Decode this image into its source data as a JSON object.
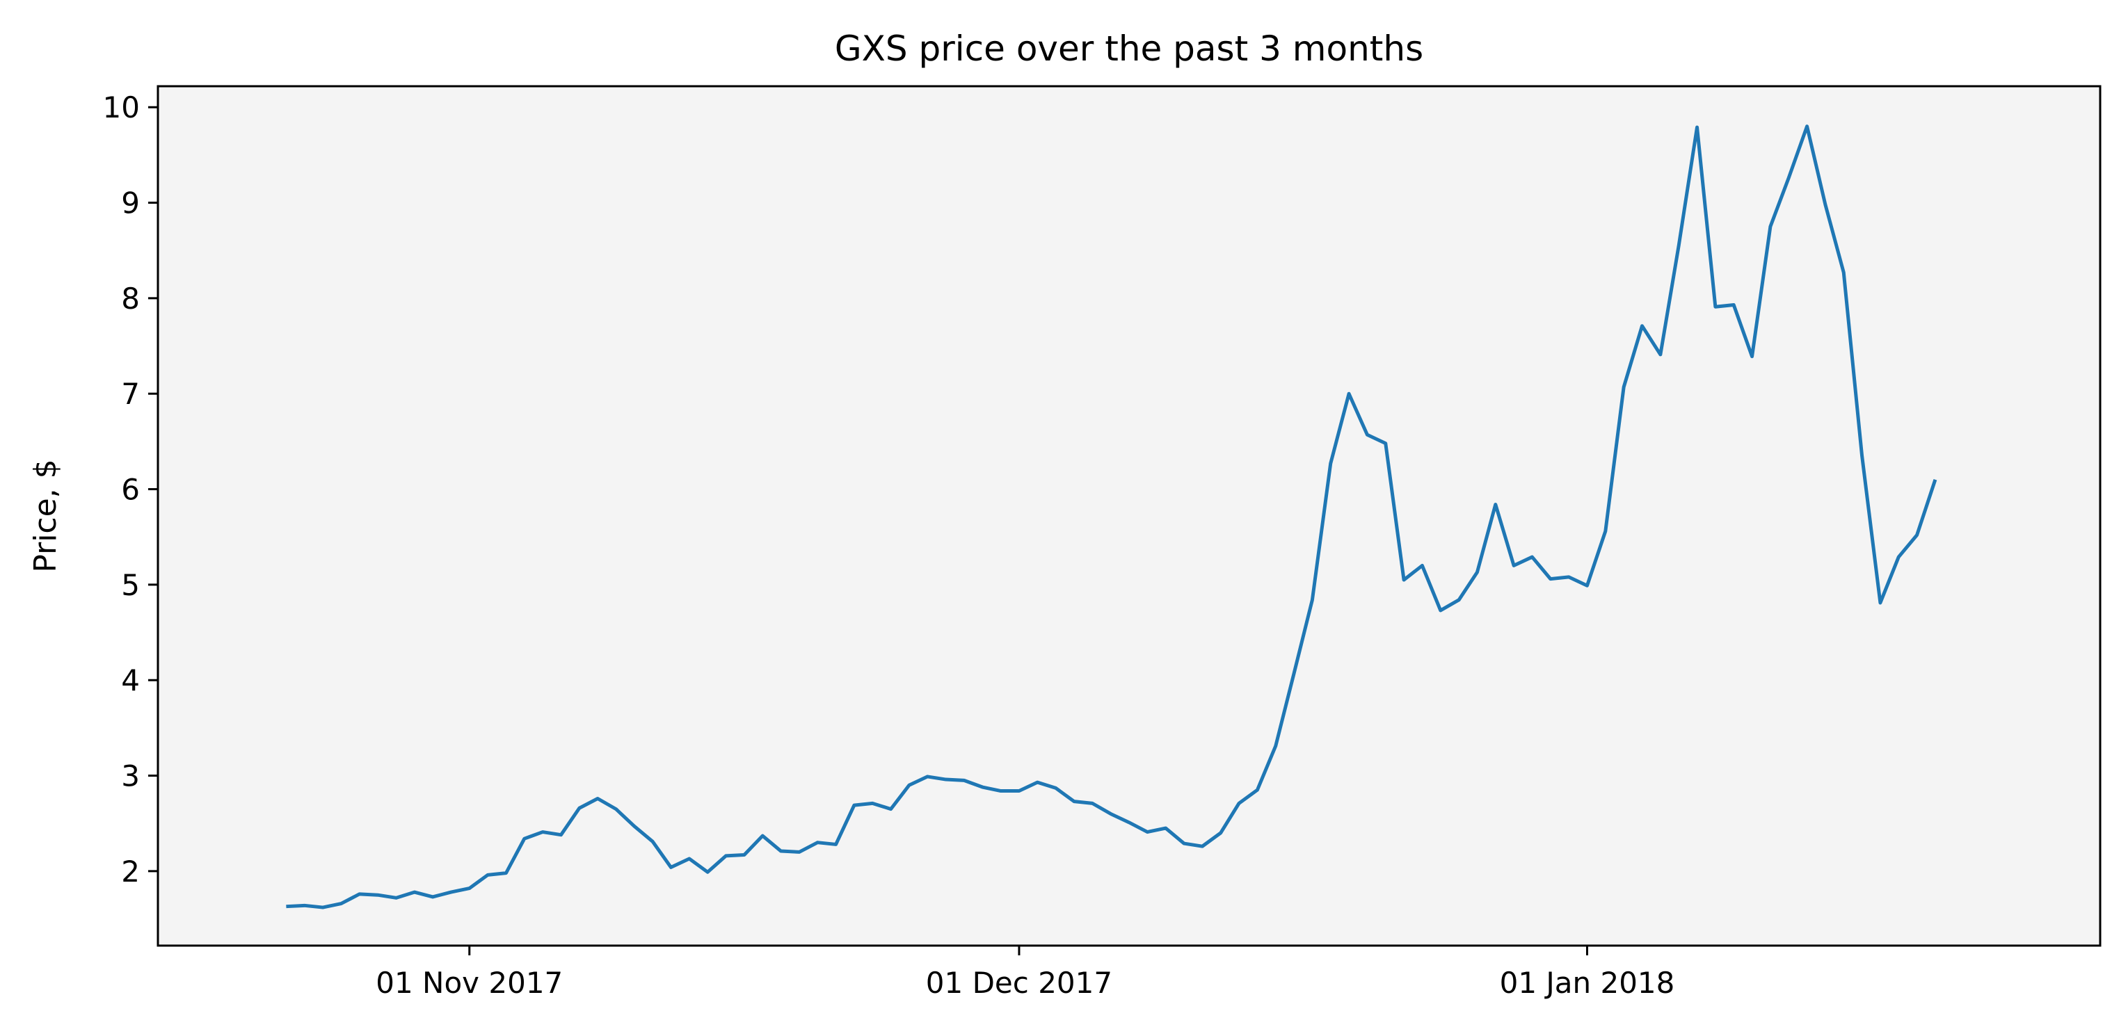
{
  "chart_data": {
    "type": "line",
    "title": "GXS price over the past 3 months",
    "xlabel": "",
    "ylabel": "Price, $",
    "background_color": "#f4f4f4",
    "line_color": "#1f77b4",
    "grid": false,
    "x_range": [
      "2017-10-15",
      "2018-01-29"
    ],
    "ylim": [
      1.22,
      10.22
    ],
    "x_ticks": [
      {
        "date": "2017-11-01",
        "label": "01 Nov 2017"
      },
      {
        "date": "2017-12-01",
        "label": "01 Dec 2017"
      },
      {
        "date": "2018-01-01",
        "label": "01 Jan 2018"
      }
    ],
    "y_ticks": [
      {
        "value": 2,
        "label": "2"
      },
      {
        "value": 3,
        "label": "3"
      },
      {
        "value": 4,
        "label": "4"
      },
      {
        "value": 5,
        "label": "5"
      },
      {
        "value": 6,
        "label": "6"
      },
      {
        "value": 7,
        "label": "7"
      },
      {
        "value": 8,
        "label": "8"
      },
      {
        "value": 9,
        "label": "9"
      },
      {
        "value": 10,
        "label": "10"
      }
    ],
    "series": [
      {
        "start_date": "2017-10-22",
        "values": [
          1.63,
          1.64,
          1.62,
          1.66,
          1.76,
          1.75,
          1.72,
          1.78,
          1.73,
          1.78,
          1.82,
          1.96,
          1.98,
          2.34,
          2.41,
          2.38,
          2.66,
          2.76,
          2.65,
          2.47,
          2.31,
          2.04,
          2.13,
          1.99,
          2.16,
          2.17,
          2.37,
          2.21,
          2.2,
          2.3,
          2.28,
          2.69,
          2.71,
          2.65,
          2.9,
          2.99,
          2.96,
          2.95,
          2.88,
          2.84,
          2.84,
          2.93,
          2.87,
          2.73,
          2.71,
          2.6,
          2.51,
          2.41,
          2.45,
          2.29,
          2.26,
          2.4,
          2.71,
          2.85,
          3.31,
          4.07,
          4.84,
          6.27,
          7.0,
          6.57,
          6.48,
          5.05,
          5.2,
          4.73,
          4.84,
          5.13,
          5.84,
          5.2,
          5.29,
          5.06,
          5.08,
          4.99,
          5.56,
          7.07,
          7.71,
          7.41,
          8.55,
          9.79,
          7.91,
          7.93,
          7.39,
          8.75,
          9.26,
          9.8,
          8.98,
          8.27,
          6.35,
          4.81,
          5.29,
          5.52,
          6.1
        ]
      }
    ]
  }
}
